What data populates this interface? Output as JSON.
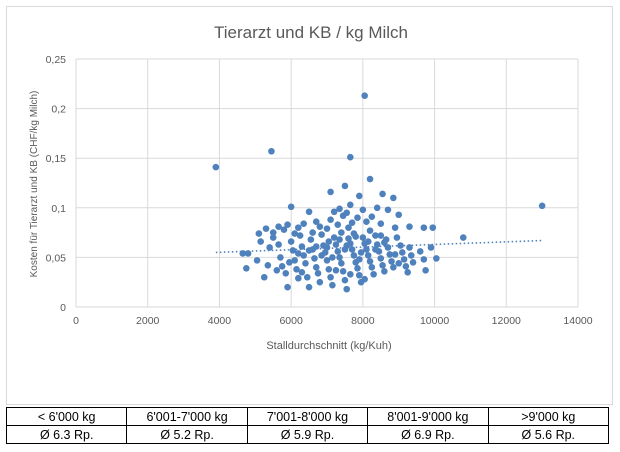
{
  "chart_data": {
    "type": "scatter",
    "title": "Tierarzt und KB / kg Milch",
    "xlabel": "Stalldurchschnitt (kg/Kuh)",
    "ylabel": "Kosten für Tierarzt und KB (CHF/kg Milch)",
    "xlim": [
      0,
      14000
    ],
    "ylim": [
      0,
      0.25
    ],
    "x_ticks": [
      "0",
      "2000",
      "4000",
      "6000",
      "8000",
      "10000",
      "12000",
      "14000"
    ],
    "y_ticks": [
      "0",
      "0,05",
      "0,1",
      "0,15",
      "0,2",
      "0,25"
    ],
    "grid": true,
    "trendline": {
      "style": "dotted",
      "x": [
        3900,
        13000
      ],
      "y": [
        0.055,
        0.067
      ]
    },
    "points": [
      [
        3900,
        0.141
      ],
      [
        5450,
        0.157
      ],
      [
        8050,
        0.213
      ],
      [
        13000,
        0.102
      ],
      [
        10800,
        0.07
      ],
      [
        7650,
        0.151
      ],
      [
        8200,
        0.129
      ],
      [
        7100,
        0.116
      ],
      [
        7500,
        0.122
      ],
      [
        8550,
        0.114
      ],
      [
        8850,
        0.11
      ],
      [
        7900,
        0.112
      ],
      [
        6500,
        0.096
      ],
      [
        6000,
        0.101
      ],
      [
        7650,
        0.103
      ],
      [
        7350,
        0.099
      ],
      [
        7200,
        0.096
      ],
      [
        8000,
        0.098
      ],
      [
        8400,
        0.1
      ],
      [
        8700,
        0.098
      ],
      [
        9000,
        0.093
      ],
      [
        7550,
        0.095
      ],
      [
        7100,
        0.088
      ],
      [
        6700,
        0.086
      ],
      [
        6350,
        0.084
      ],
      [
        5900,
        0.083
      ],
      [
        5650,
        0.081
      ],
      [
        5300,
        0.079
      ],
      [
        5100,
        0.074
      ],
      [
        5500,
        0.075
      ],
      [
        5800,
        0.078
      ],
      [
        6200,
        0.08
      ],
      [
        6800,
        0.081
      ],
      [
        7300,
        0.083
      ],
      [
        7700,
        0.085
      ],
      [
        8100,
        0.086
      ],
      [
        8500,
        0.084
      ],
      [
        8900,
        0.08
      ],
      [
        9300,
        0.081
      ],
      [
        9700,
        0.08
      ],
      [
        9950,
        0.08
      ],
      [
        7450,
        0.092
      ],
      [
        7850,
        0.09
      ],
      [
        8250,
        0.091
      ],
      [
        7000,
        0.079
      ],
      [
        7600,
        0.08
      ],
      [
        4650,
        0.054
      ],
      [
        4800,
        0.054
      ],
      [
        4750,
        0.039
      ],
      [
        5150,
        0.066
      ],
      [
        5050,
        0.047
      ],
      [
        5400,
        0.06
      ],
      [
        5350,
        0.042
      ],
      [
        5250,
        0.03
      ],
      [
        5500,
        0.07
      ],
      [
        5650,
        0.063
      ],
      [
        5700,
        0.05
      ],
      [
        5750,
        0.041
      ],
      [
        5850,
        0.034
      ],
      [
        5900,
        0.02
      ],
      [
        6000,
        0.066
      ],
      [
        6050,
        0.057
      ],
      [
        6100,
        0.047
      ],
      [
        6150,
        0.038
      ],
      [
        6200,
        0.029
      ],
      [
        6250,
        0.072
      ],
      [
        6300,
        0.061
      ],
      [
        6350,
        0.052
      ],
      [
        6400,
        0.044
      ],
      [
        6450,
        0.03
      ],
      [
        6500,
        0.02
      ],
      [
        6550,
        0.068
      ],
      [
        6600,
        0.058
      ],
      [
        6650,
        0.049
      ],
      [
        6700,
        0.04
      ],
      [
        6750,
        0.034
      ],
      [
        6800,
        0.025
      ],
      [
        6850,
        0.073
      ],
      [
        6900,
        0.062
      ],
      [
        6950,
        0.055
      ],
      [
        7000,
        0.047
      ],
      [
        7050,
        0.038
      ],
      [
        7100,
        0.03
      ],
      [
        7150,
        0.022
      ],
      [
        7200,
        0.07
      ],
      [
        7250,
        0.063
      ],
      [
        7300,
        0.056
      ],
      [
        7350,
        0.05
      ],
      [
        7400,
        0.044
      ],
      [
        7450,
        0.036
      ],
      [
        7500,
        0.027
      ],
      [
        7550,
        0.018
      ],
      [
        7600,
        0.069
      ],
      [
        7650,
        0.064
      ],
      [
        7700,
        0.058
      ],
      [
        7750,
        0.052
      ],
      [
        7800,
        0.045
      ],
      [
        7850,
        0.039
      ],
      [
        7900,
        0.032
      ],
      [
        7950,
        0.025
      ],
      [
        8000,
        0.07
      ],
      [
        8050,
        0.064
      ],
      [
        8100,
        0.058
      ],
      [
        8150,
        0.052
      ],
      [
        8200,
        0.046
      ],
      [
        8250,
        0.04
      ],
      [
        8300,
        0.033
      ],
      [
        8350,
        0.072
      ],
      [
        8400,
        0.063
      ],
      [
        8450,
        0.056
      ],
      [
        8500,
        0.049
      ],
      [
        8550,
        0.042
      ],
      [
        8600,
        0.036
      ],
      [
        8650,
        0.068
      ],
      [
        8700,
        0.06
      ],
      [
        8750,
        0.053
      ],
      [
        8800,
        0.046
      ],
      [
        8850,
        0.04
      ],
      [
        8950,
        0.07
      ],
      [
        9050,
        0.062
      ],
      [
        9100,
        0.055
      ],
      [
        9150,
        0.048
      ],
      [
        9200,
        0.041
      ],
      [
        9250,
        0.035
      ],
      [
        9300,
        0.06
      ],
      [
        9350,
        0.052
      ],
      [
        9400,
        0.045
      ],
      [
        9600,
        0.056
      ],
      [
        9700,
        0.048
      ],
      [
        9750,
        0.037
      ],
      [
        9900,
        0.06
      ],
      [
        10050,
        0.049
      ],
      [
        7400,
        0.075
      ],
      [
        7800,
        0.071
      ],
      [
        8200,
        0.077
      ],
      [
        6600,
        0.075
      ],
      [
        8600,
        0.065
      ],
      [
        7000,
        0.06
      ],
      [
        7150,
        0.05
      ],
      [
        7550,
        0.062
      ],
      [
        7950,
        0.055
      ],
      [
        8350,
        0.058
      ],
      [
        6850,
        0.052
      ],
      [
        6500,
        0.057
      ],
      [
        7250,
        0.037
      ],
      [
        7650,
        0.033
      ],
      [
        8050,
        0.028
      ],
      [
        6300,
        0.035
      ],
      [
        5950,
        0.045
      ],
      [
        8900,
        0.053
      ],
      [
        6100,
        0.074
      ],
      [
        7350,
        0.068
      ],
      [
        7750,
        0.074
      ],
      [
        8150,
        0.066
      ],
      [
        8500,
        0.072
      ],
      [
        9000,
        0.044
      ],
      [
        7050,
        0.066
      ],
      [
        6700,
        0.061
      ],
      [
        7500,
        0.058
      ],
      [
        7900,
        0.048
      ],
      [
        6200,
        0.054
      ],
      [
        5600,
        0.037
      ]
    ]
  },
  "summary_table": {
    "headers": [
      "< 6'000 kg",
      "6'001-7'000 kg",
      "7'001-8'000 kg",
      "8'001-9'000 kg",
      ">9'000 kg"
    ],
    "values": [
      "Ø 6.3 Rp.",
      "Ø 5.2 Rp.",
      "Ø 5.9 Rp.",
      "Ø 6.9 Rp.",
      "Ø 5.6 Rp."
    ]
  },
  "colors": {
    "marker": "#4f81bd",
    "grid": "#d9d9d9",
    "text": "#595959"
  }
}
